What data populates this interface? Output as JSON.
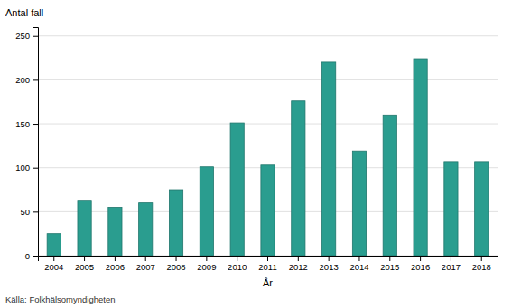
{
  "chart_data": {
    "type": "bar",
    "categories": [
      "2004",
      "2005",
      "2006",
      "2007",
      "2008",
      "2009",
      "2010",
      "2011",
      "2012",
      "2013",
      "2014",
      "2015",
      "2016",
      "2017",
      "2018"
    ],
    "values": [
      25,
      63,
      55,
      60,
      75,
      101,
      151,
      103,
      176,
      220,
      119,
      160,
      224,
      107,
      107
    ],
    "color": "#2a9d8f",
    "x_label": "År",
    "y_label": "Antal fall",
    "annotation": "Källa: Folkhälsomyndigheten",
    "ylim": [
      0,
      260
    ],
    "yticks": [
      0,
      50,
      100,
      150,
      200,
      250
    ],
    "grid": true
  }
}
